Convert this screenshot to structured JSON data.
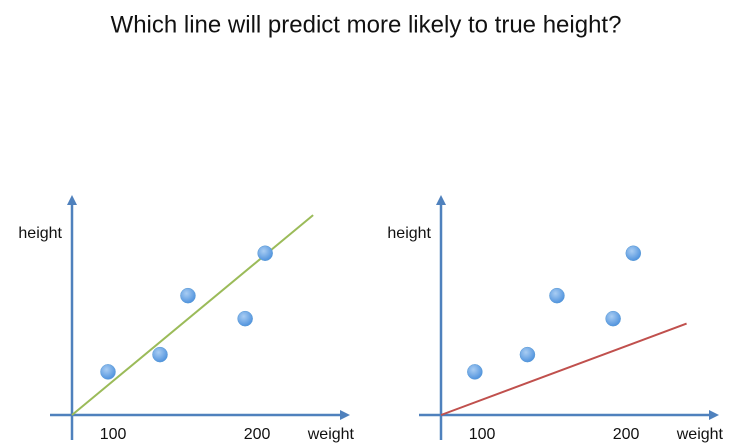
{
  "title": "Which line will predict more likely to true height?",
  "chart_data": [
    {
      "type": "scatter",
      "x": [
        96.5,
        132.6,
        152,
        191.7,
        205.6
      ],
      "y": [
        30,
        42,
        83,
        67,
        112.5
      ],
      "color": "#5b9bd5",
      "fit_line": {
        "x": [
          71.5,
          238.9
        ],
        "y": [
          0,
          139
        ],
        "color": "#9bbb59"
      },
      "xlim": [
        71.5,
        264.5
      ],
      "ylim": [
        0,
        153
      ],
      "xticks": [
        100,
        200
      ],
      "xlabel": "weight",
      "ylabel": "height"
    },
    {
      "type": "scatter",
      "x": [
        95,
        131.5,
        152,
        191,
        205
      ],
      "y": [
        30,
        42,
        83,
        67,
        112.5
      ],
      "color": "#5b9bd5",
      "fit_line": {
        "x": [
          71.5,
          242
        ],
        "y": [
          0,
          63.6
        ],
        "color": "#c0504d"
      },
      "xlim": [
        71.5,
        264.5
      ],
      "ylim": [
        0,
        153
      ],
      "xticks": [
        100,
        200
      ],
      "xlabel": "weight",
      "ylabel": "height"
    }
  ]
}
